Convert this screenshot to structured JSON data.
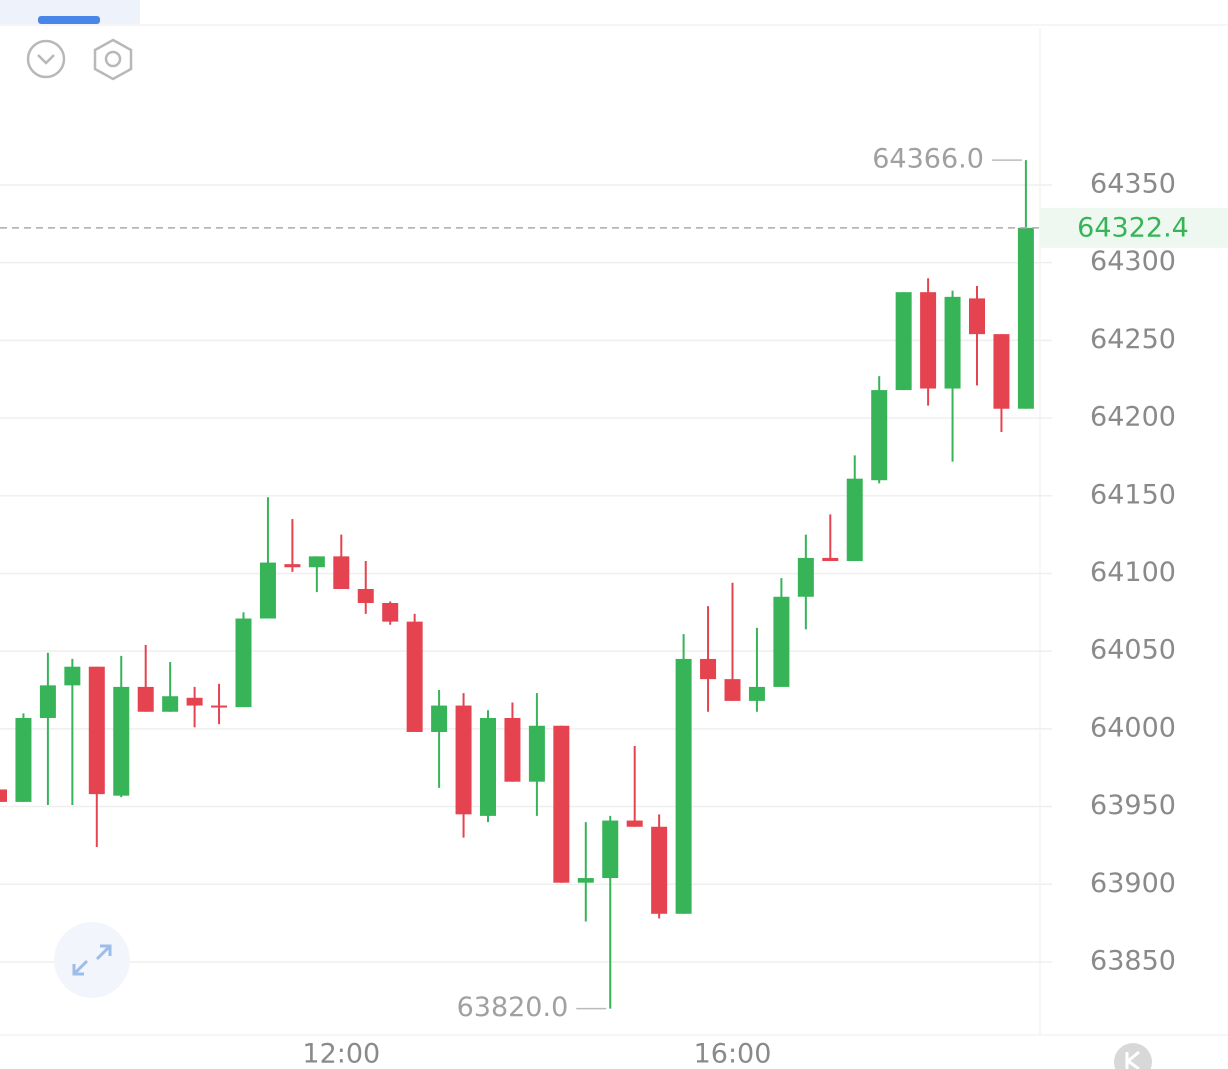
{
  "chart_data": {
    "type": "candlestick",
    "categories": [
      null,
      null,
      null,
      null,
      null,
      null,
      null,
      null,
      null,
      null,
      null,
      null,
      null,
      null,
      "12:00",
      null,
      null,
      null,
      null,
      null,
      null,
      null,
      null,
      null,
      null,
      null,
      null,
      null,
      null,
      null,
      "16:00",
      null,
      null,
      null,
      null,
      null,
      null,
      null,
      null,
      null,
      null,
      null,
      null
    ],
    "open": [
      63961,
      63953,
      64007,
      64028,
      64040,
      63957,
      64027,
      64011,
      64020,
      64015,
      64014,
      64071,
      64106,
      64104,
      64111,
      64090,
      64081,
      64069,
      63998,
      64015,
      63944,
      64007,
      63966,
      64002,
      63901,
      63904,
      63941,
      63937,
      63881,
      64045,
      64032,
      64018,
      64027,
      64085,
      64110,
      64108,
      64160,
      64218,
      64281,
      64219,
      64277,
      64254,
      64206
    ],
    "high": [
      63983,
      64010,
      64049,
      64045,
      64040,
      64047,
      64054,
      64043,
      64027,
      64029,
      64075,
      64149,
      64135,
      64111,
      64125,
      64108,
      64082,
      64074,
      64025,
      64023,
      64012,
      64017,
      64023,
      64002,
      63940,
      63944,
      63989,
      63945,
      64061,
      64079,
      64094,
      64065,
      64097,
      64125,
      64138,
      64176,
      64227,
      64281,
      64290,
      64282,
      64285,
      64254,
      64366
    ],
    "low": [
      63919,
      63953,
      63951,
      63951,
      63924,
      63956,
      64011,
      64011,
      64001,
      64003,
      64014,
      64071,
      64101,
      64088,
      64090,
      64074,
      64067,
      63998,
      63962,
      63930,
      63940,
      63966,
      63944,
      63901,
      63876,
      63820,
      63937,
      63878,
      63881,
      64011,
      64018,
      64011,
      64027,
      64064,
      64108,
      64108,
      64158,
      64218,
      64208,
      64172,
      64221,
      64191,
      64206
    ],
    "close": [
      63953,
      64007,
      64028,
      64040,
      63958,
      64027,
      64011,
      64021,
      64015,
      64014,
      64071,
      64107,
      64104,
      64111,
      64090,
      64081,
      64069,
      63998,
      64015,
      63945,
      64007,
      63966,
      64002,
      63901,
      63904,
      63941,
      63937,
      63881,
      64045,
      64032,
      64018,
      64027,
      64085,
      64110,
      64108,
      64161,
      64218,
      64281,
      64219,
      64278,
      64254,
      64206,
      64322.4
    ],
    "up_color": "#37b458",
    "down_color": "#e5434f",
    "ylim": [
      63803,
      64451
    ],
    "yticks": [
      63850,
      63900,
      63950,
      64000,
      64050,
      64100,
      64150,
      64200,
      64250,
      64300,
      64350
    ],
    "grid": true,
    "last_price": 64322.4,
    "annotations": [
      {
        "value": 64366,
        "label": "64366.0"
      },
      {
        "value": 63820,
        "label": "63820.0"
      }
    ]
  }
}
